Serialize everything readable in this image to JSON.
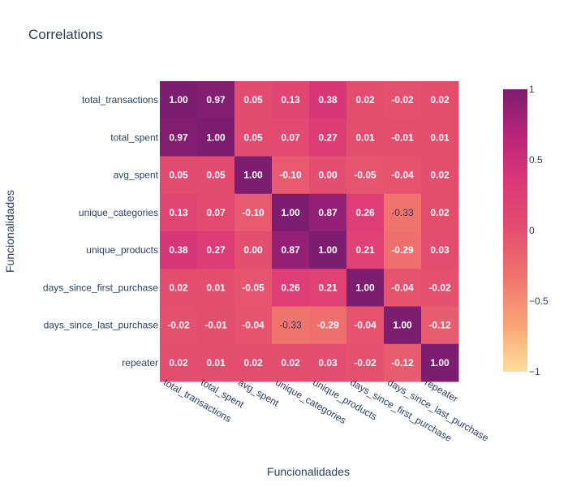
{
  "chart_data": {
    "type": "heatmap",
    "title": "Correlations",
    "xlabel": "Funcionalidades",
    "ylabel": "Funcionalidades",
    "x_categories": [
      "total_transactions",
      "total_spent",
      "avg_spent",
      "unique_categories",
      "unique_products",
      "days_since_first_purchase",
      "days_since_last_purchase",
      "repeater"
    ],
    "y_categories": [
      "total_transactions",
      "total_spent",
      "avg_spent",
      "unique_categories",
      "unique_products",
      "days_since_first_purchase",
      "days_since_last_purchase",
      "repeater"
    ],
    "values": [
      [
        1.0,
        0.97,
        0.05,
        0.13,
        0.38,
        0.02,
        -0.02,
        0.02
      ],
      [
        0.97,
        1.0,
        0.05,
        0.07,
        0.27,
        0.01,
        -0.01,
        0.01
      ],
      [
        0.05,
        0.05,
        1.0,
        -0.1,
        0.0,
        -0.05,
        -0.04,
        0.02
      ],
      [
        0.13,
        0.07,
        -0.1,
        1.0,
        0.87,
        0.26,
        -0.33,
        0.02
      ],
      [
        0.38,
        0.27,
        0.0,
        0.87,
        1.0,
        0.21,
        -0.29,
        0.03
      ],
      [
        0.02,
        0.01,
        -0.05,
        0.26,
        0.21,
        1.0,
        -0.04,
        -0.02
      ],
      [
        -0.02,
        -0.01,
        -0.04,
        -0.33,
        -0.29,
        -0.04,
        1.0,
        -0.12
      ],
      [
        0.02,
        0.01,
        0.02,
        0.02,
        0.03,
        -0.02,
        -0.12,
        1.0
      ]
    ],
    "value_format": "0.00",
    "colorscale": [
      "#fcde9c",
      "#faa476",
      "#f0746e",
      "#e34f6f",
      "#dc3977",
      "#b9257a",
      "#7c1d6f"
    ],
    "zmin": -1,
    "zmax": 1,
    "colorbar": {
      "ticks": [
        1,
        0.5,
        0,
        -0.5,
        -1
      ],
      "tick_labels": [
        "1",
        "0.5",
        "0",
        "−0.5",
        "−1"
      ]
    }
  }
}
